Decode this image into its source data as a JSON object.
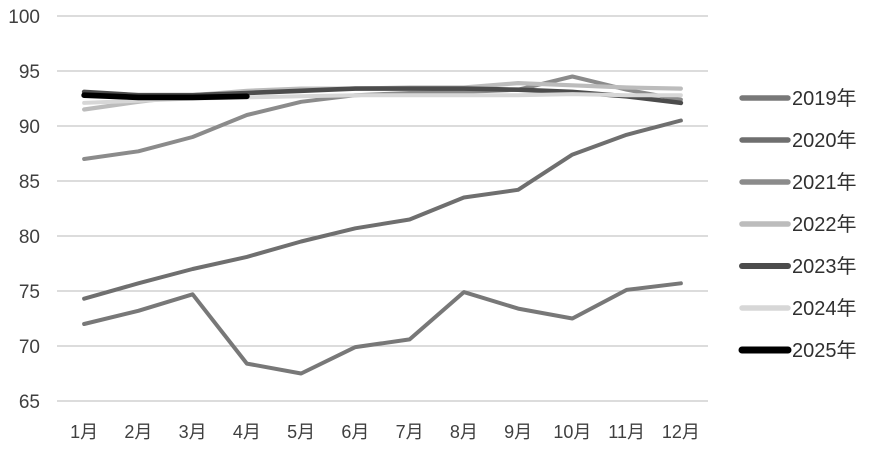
{
  "chart_data": {
    "type": "line",
    "title": "",
    "xlabel": "",
    "ylabel": "",
    "categories": [
      "1月",
      "2月",
      "3月",
      "4月",
      "5月",
      "6月",
      "7月",
      "8月",
      "9月",
      "10月",
      "11月",
      "12月"
    ],
    "series": [
      {
        "name": "2019年",
        "color": "#787878",
        "values": [
          72.0,
          73.2,
          74.7,
          68.4,
          67.5,
          69.9,
          70.6,
          74.9,
          73.4,
          72.5,
          75.1,
          75.7
        ]
      },
      {
        "name": "2020年",
        "color": "#6f6f6f",
        "values": [
          74.3,
          75.7,
          77.0,
          78.1,
          79.5,
          80.7,
          81.5,
          83.5,
          84.2,
          87.4,
          89.2,
          90.5
        ]
      },
      {
        "name": "2021年",
        "color": "#8b8b8b",
        "values": [
          87.0,
          87.7,
          89.0,
          91.0,
          92.2,
          92.8,
          93.0,
          93.1,
          93.3,
          94.5,
          93.3,
          92.4
        ]
      },
      {
        "name": "2022年",
        "color": "#bcbcbc",
        "values": [
          91.5,
          92.2,
          92.8,
          93.2,
          93.4,
          93.4,
          93.5,
          93.5,
          93.9,
          93.7,
          93.5,
          93.4
        ]
      },
      {
        "name": "2023年",
        "color": "#4c4c4c",
        "values": [
          93.1,
          92.8,
          92.8,
          93.0,
          93.2,
          93.4,
          93.4,
          93.4,
          93.3,
          93.1,
          92.7,
          92.1
        ]
      },
      {
        "name": "2024年",
        "color": "#d7d7d7",
        "values": [
          92.1,
          92.3,
          92.5,
          92.6,
          92.7,
          92.8,
          92.8,
          92.8,
          92.8,
          92.9,
          92.8,
          92.8
        ]
      },
      {
        "name": "2025年",
        "color": "#000000",
        "values": [
          92.8,
          92.6,
          92.6,
          92.7,
          null,
          null,
          null,
          null,
          null,
          null,
          null,
          null
        ]
      }
    ],
    "ylim": [
      65,
      100
    ],
    "yticks": [
      100,
      95,
      90,
      85,
      80,
      75,
      70,
      65
    ],
    "ytick_labels": [
      "100",
      "95",
      "90",
      "85",
      "80",
      "75",
      "70",
      "65"
    ],
    "grid": "horizontal-only",
    "gridline_color": "#c6c6c6",
    "axis_text_color": "#3f3f3f",
    "legend_position": "right",
    "legend_entries": [
      "2019年",
      "2020年",
      "2021年",
      "2022年",
      "2023年",
      "2024年",
      "2025年"
    ]
  }
}
